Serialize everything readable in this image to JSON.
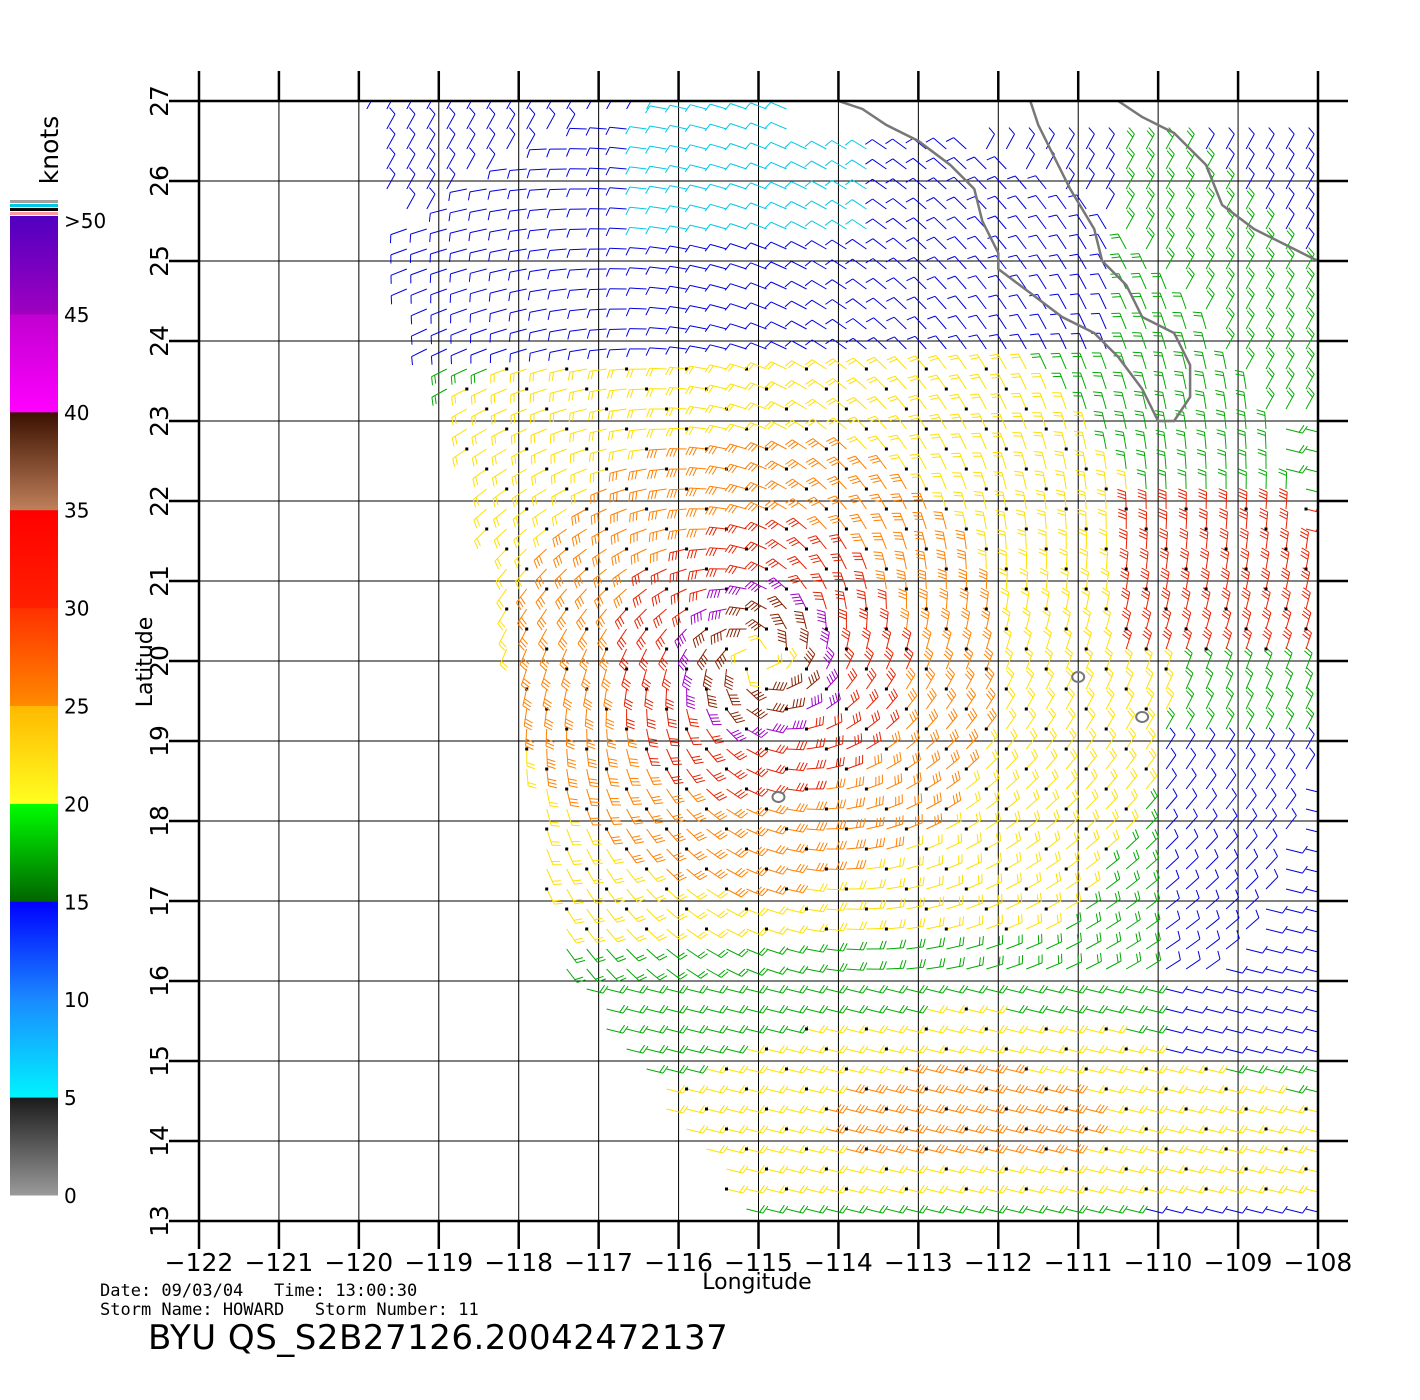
{
  "map": {
    "xlabel": "Longitude",
    "ylabel": "Latitude",
    "lon_ticks": [
      -122,
      -121,
      -120,
      -119,
      -118,
      -117,
      -116,
      -115,
      -114,
      -113,
      -112,
      -111,
      -110,
      -109,
      -108
    ],
    "lon_tick_labels": [
      "−122",
      "−121",
      "−120",
      "−119",
      "−118",
      "−117",
      "−116",
      "−115",
      "−114",
      "−113",
      "−112",
      "−111",
      "−110",
      "−109",
      "−108"
    ],
    "lat_ticks": [
      13,
      14,
      15,
      16,
      17,
      18,
      19,
      20,
      21,
      22,
      23,
      24,
      25,
      26,
      27
    ],
    "lat_tick_labels": [
      "13",
      "14",
      "15",
      "16",
      "17",
      "18",
      "19",
      "20",
      "21",
      "22",
      "23",
      "24",
      "25",
      "26",
      "27"
    ],
    "lon_range": [
      -122,
      -108
    ],
    "lat_range": [
      13,
      27
    ],
    "grid": true,
    "storm_center": {
      "lon": -115.0,
      "lat": 20.0
    },
    "coastline_color": "#777777"
  },
  "colorbar": {
    "title": "knots",
    "labels": [
      ">50",
      "45",
      "40",
      "35",
      "30",
      "25",
      "20",
      "15",
      "10",
      "5",
      "0"
    ],
    "bands": [
      {
        "min": 0,
        "max": 5,
        "from": "#9a9a9a",
        "to": "#1a1a1a"
      },
      {
        "min": 5,
        "max": 10,
        "from": "#00f4ff",
        "to": "#1a8aff"
      },
      {
        "min": 10,
        "max": 15,
        "from": "#1a8aff",
        "to": "#0000ff"
      },
      {
        "min": 15,
        "max": 20,
        "from": "#006400",
        "to": "#00ff00"
      },
      {
        "min": 20,
        "max": 25,
        "from": "#ffff20",
        "to": "#ffb800"
      },
      {
        "min": 25,
        "max": 30,
        "from": "#ff8a00",
        "to": "#ff3000"
      },
      {
        "min": 30,
        "max": 35,
        "from": "#ff2000",
        "to": "#ff0000"
      },
      {
        "min": 35,
        "max": 40,
        "from": "#c0805a",
        "to": "#3a1000"
      },
      {
        "min": 40,
        "max": 45,
        "from": "#ff00ff",
        "to": "#c000d0"
      },
      {
        "min": 45,
        "max": 50,
        "from": "#a000c0",
        "to": "#5000c0"
      }
    ]
  },
  "wind_colors": {
    "lt5": "#2a2a2a",
    "5to10": "#00c8e6",
    "10to15": "#0000dd",
    "15to20": "#00aa00",
    "20to25": "#ffe000",
    "25to30": "#ff8000",
    "30to35": "#e82000",
    "35to40": "#8a2000",
    "40plus": "#a000c8"
  },
  "meta": {
    "line1": "Date: 09/03/04   Time: 13:00:30",
    "line2": "Storm Name: HOWARD   Storm Number: 11",
    "product": "BYU  QS_S2B27126.20042472137"
  }
}
